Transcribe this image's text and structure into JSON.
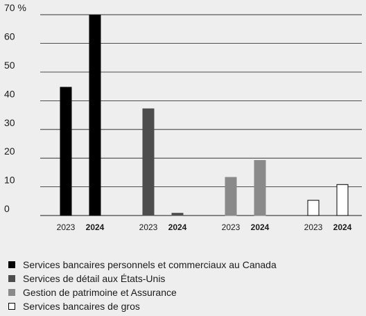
{
  "chart_data": {
    "type": "bar",
    "yaxis": {
      "ticks": [
        0,
        10,
        20,
        30,
        40,
        50,
        60,
        70
      ],
      "tick_labels": [
        "0",
        "10",
        "20",
        "30",
        "40",
        "50",
        "60",
        "70 %"
      ],
      "ylim": [
        0,
        70
      ]
    },
    "grid": true,
    "categories": [
      {
        "name": "Services bancaires personnels et commerciaux au Canada",
        "color": "#000000",
        "stroke": "#000000",
        "x_labels": [
          "2023",
          "2024"
        ],
        "values": [
          44.7,
          69.8
        ]
      },
      {
        "name": "Services de détail aux États-Unis",
        "color": "#4d4d4d",
        "stroke": "#4d4d4d",
        "x_labels": [
          "2023",
          "2024"
        ],
        "values": [
          37.2,
          0.8
        ]
      },
      {
        "name": "Gestion de patrimoine et Assurance",
        "color": "#8a8a8a",
        "stroke": "#8a8a8a",
        "x_labels": [
          "2023",
          "2024"
        ],
        "values": [
          13.3,
          19.2
        ]
      },
      {
        "name": "Services bancaires de gros",
        "color": "#ffffff",
        "stroke": "#000000",
        "x_labels": [
          "2023",
          "2024"
        ],
        "values": [
          5.3,
          10.8
        ]
      }
    ],
    "bold_label_index": 1,
    "legend_position": "bottom-left"
  }
}
